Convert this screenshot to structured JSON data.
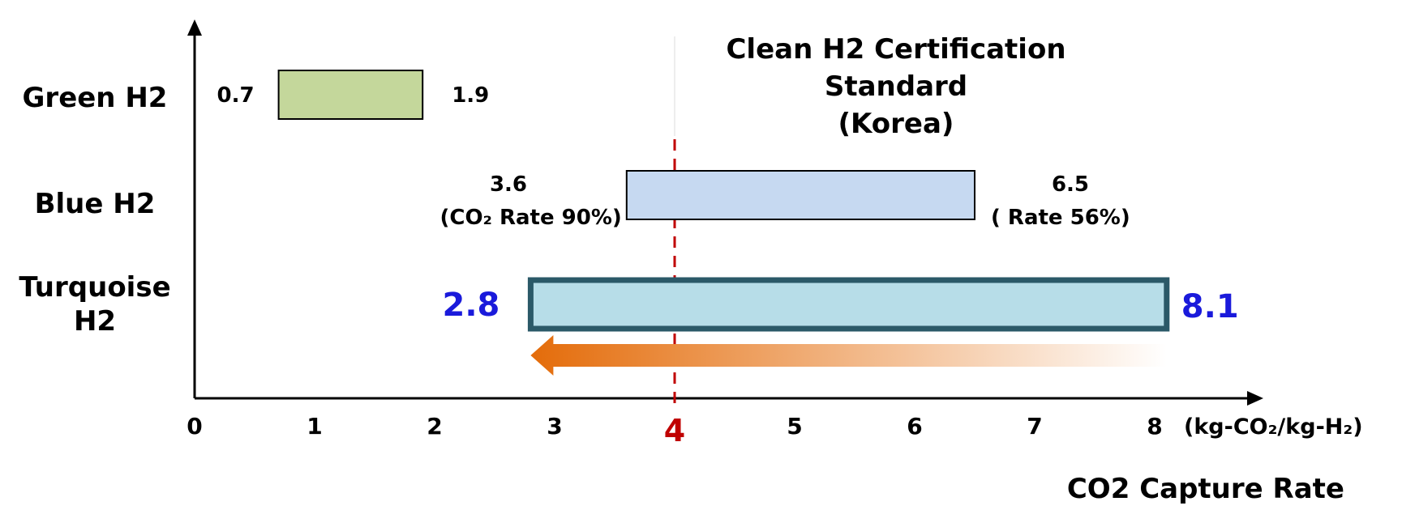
{
  "chart_data": {
    "type": "bar",
    "orientation": "horizontal-range",
    "xlim": [
      0,
      8
    ],
    "x_unit_label": "(kg-CO₂/kg-H₂)",
    "x_ticks": [
      {
        "value": 0,
        "label": "0"
      },
      {
        "value": 1,
        "label": "1"
      },
      {
        "value": 2,
        "label": "2"
      },
      {
        "value": 3,
        "label": "3"
      },
      {
        "value": 4,
        "label": "4",
        "highlight": true
      },
      {
        "value": 5,
        "label": "5"
      },
      {
        "value": 6,
        "label": "6"
      },
      {
        "value": 7,
        "label": "7"
      },
      {
        "value": 8,
        "label": "8"
      }
    ],
    "categories": [
      {
        "name": "Green H2",
        "name_lines": [
          "Green H2"
        ],
        "min": 0.7,
        "max": 1.9,
        "min_label": "0.7",
        "max_label": "1.9",
        "fill": "#c4d79b",
        "stroke": "#000000"
      },
      {
        "name": "Blue H2",
        "name_lines": [
          "Blue H2"
        ],
        "min": 3.6,
        "max": 6.5,
        "min_label": "3.6",
        "max_label": "6.5",
        "min_sublabel": "(CO₂  Rate   90%)",
        "max_sublabel": "(  Rate    56%)",
        "fill": "#c6d9f1",
        "stroke": "#000000"
      },
      {
        "name": "Turquoise H2",
        "name_lines": [
          "Turquoise",
          "H2"
        ],
        "min": 2.8,
        "max": 8.1,
        "min_label": "2.8",
        "max_label": "8.1",
        "fill": "#b7dde8",
        "stroke": "#2b5968",
        "label_color": "#1a1adb"
      }
    ],
    "reference_line": {
      "value": 4,
      "color": "#c00000",
      "style": "dashed",
      "title_lines": [
        "Clean H2 Certification",
        "Standard",
        "(Korea)"
      ]
    },
    "trend_arrow": {
      "direction": "left",
      "color_start": "#e46c0a",
      "color_end": "#ffffff"
    },
    "footer_label": "CO2 Capture Rate"
  }
}
